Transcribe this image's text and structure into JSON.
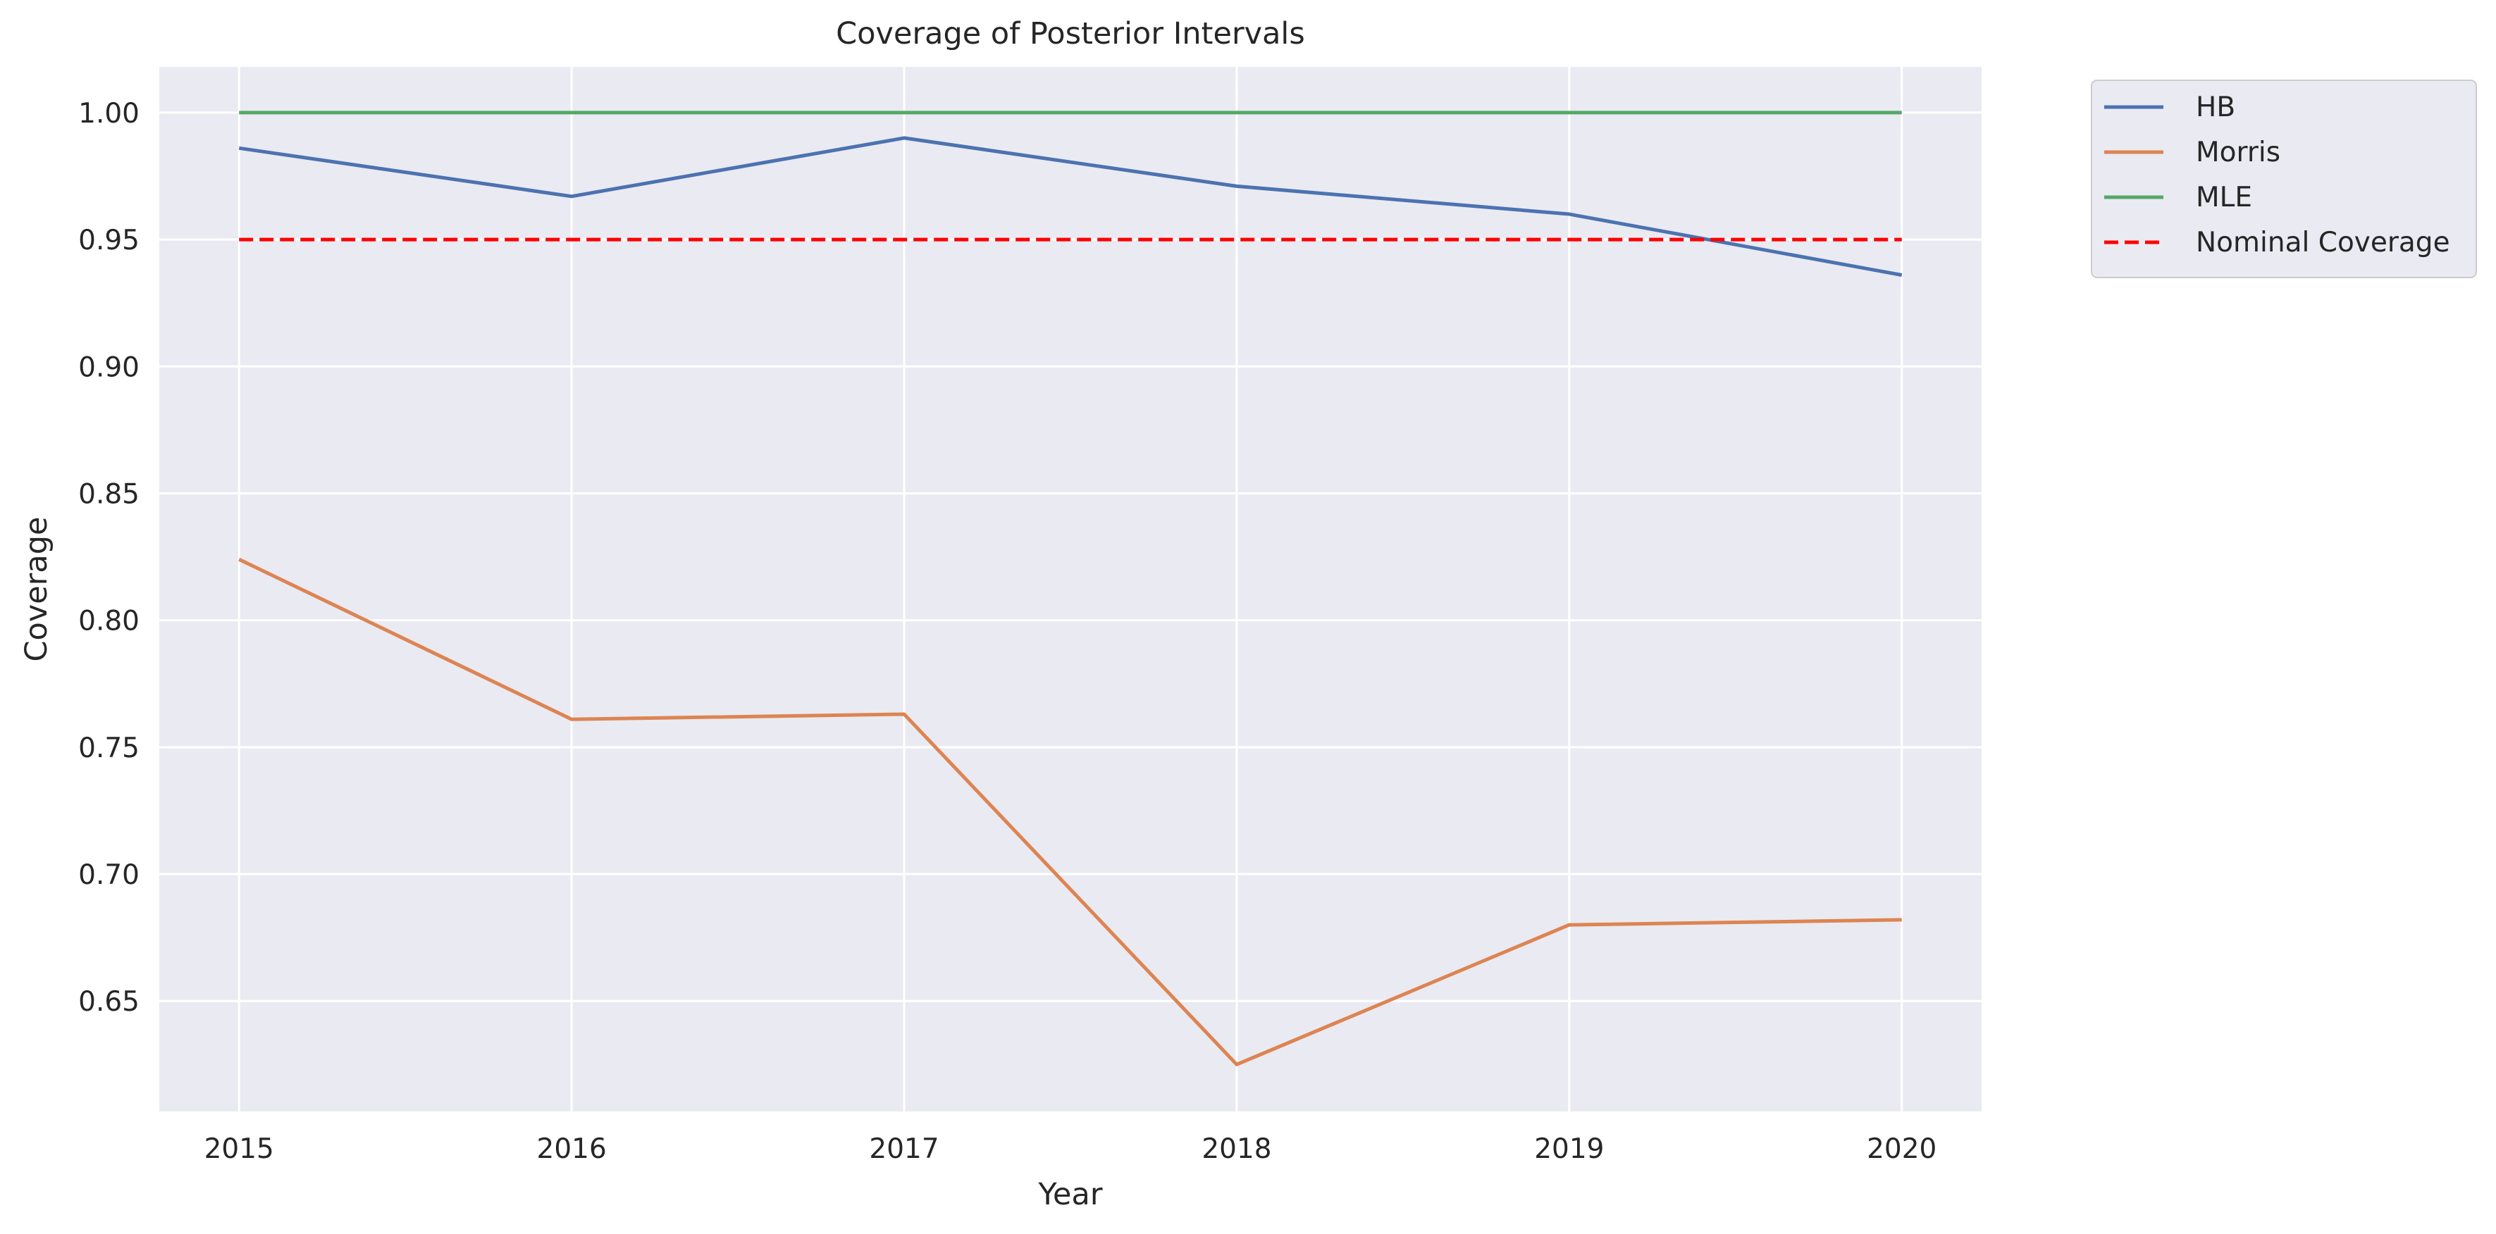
{
  "chart_data": {
    "type": "line",
    "title": "Coverage of Posterior Intervals",
    "xlabel": "Year",
    "ylabel": "Coverage",
    "x": [
      2015,
      2016,
      2017,
      2018,
      2019,
      2020
    ],
    "x_tick_labels": [
      "2015",
      "2016",
      "2017",
      "2018",
      "2019",
      "2020"
    ],
    "y_ticks": [
      0.65,
      0.7,
      0.75,
      0.8,
      0.85,
      0.9,
      0.95,
      1.0
    ],
    "y_tick_labels": [
      "0.65",
      "0.70",
      "0.75",
      "0.80",
      "0.85",
      "0.90",
      "0.95",
      "1.00"
    ],
    "xlim": [
      2014.76,
      2020.24
    ],
    "ylim": [
      0.6065,
      1.018
    ],
    "grid": true,
    "background_color": "#eaeaf2",
    "legend_position": "outside-top-right",
    "series": [
      {
        "name": "HB",
        "color": "#4c72b0",
        "style": "solid",
        "values": [
          0.986,
          0.967,
          0.99,
          0.971,
          0.96,
          0.936
        ]
      },
      {
        "name": "Morris",
        "color": "#dd8452",
        "style": "solid",
        "values": [
          0.824,
          0.761,
          0.763,
          0.625,
          0.68,
          0.682
        ]
      },
      {
        "name": "MLE",
        "color": "#55a868",
        "style": "solid",
        "values": [
          1.0,
          1.0,
          1.0,
          1.0,
          1.0,
          1.0
        ]
      },
      {
        "name": "Nominal Coverage",
        "color": "#ff0000",
        "style": "dashed",
        "values": [
          0.95,
          0.95,
          0.95,
          0.95,
          0.95,
          0.95
        ]
      }
    ]
  }
}
